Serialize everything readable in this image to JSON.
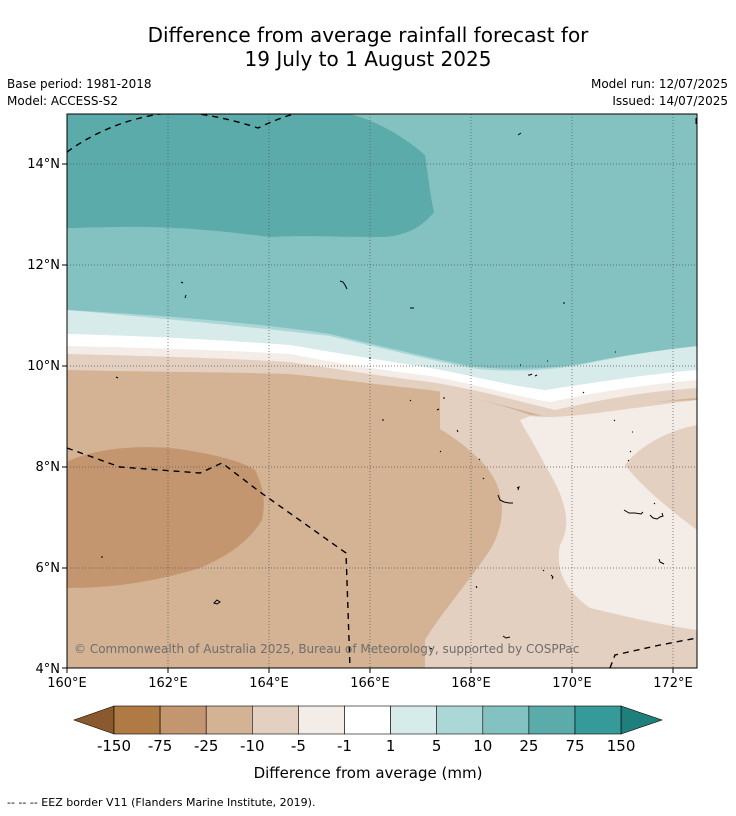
{
  "header": {
    "title_line1": "Difference from average rainfall forecast for",
    "title_line2": "19 July to 1 August 2025",
    "base_period": "Base period: 1981-2018",
    "model": "Model: ACCESS-S2",
    "model_run": "Model run: 12/07/2025",
    "issued": "Issued: 14/07/2025"
  },
  "map": {
    "lat_labels": [
      "14°N",
      "12°N",
      "10°N",
      "8°N",
      "6°N",
      "4°N"
    ],
    "lon_labels": [
      "160°E",
      "162°E",
      "164°E",
      "166°E",
      "168°E",
      "170°E",
      "172°E"
    ],
    "copyright": "© Commonwealth of Australia 2025, Bureau of Meteorology, supported by COSPPac"
  },
  "colorbar": {
    "ticks": [
      "-150",
      "-75",
      "-25",
      "-10",
      "-5",
      "-1",
      "1",
      "5",
      "10",
      "25",
      "75",
      "150"
    ],
    "colors": [
      "#8a5a2e",
      "#b07a44",
      "#c49670",
      "#d4b294",
      "#e4d0c0",
      "#f4ece6",
      "#ffffff",
      "#d7ebea",
      "#abd8d7",
      "#84c1c1",
      "#5aabaa",
      "#369a98",
      "#1f7f7d"
    ],
    "label": "Difference from average (mm)"
  },
  "footnote": "--  --  -- EEZ border V11 (Flanders Marine Institute, 2019)."
}
